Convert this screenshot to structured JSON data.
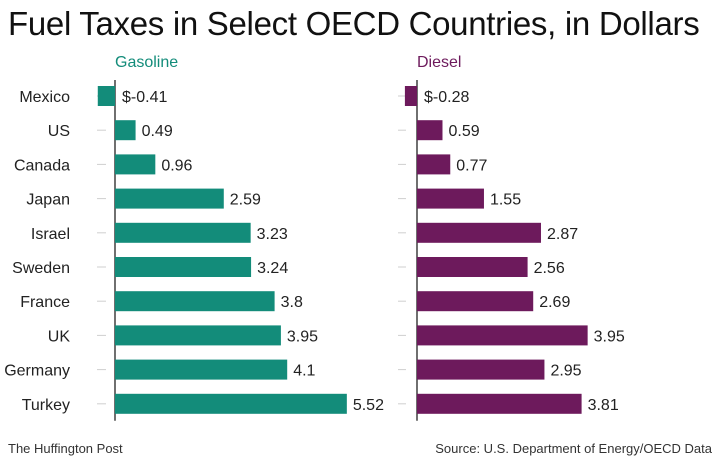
{
  "title": "Fuel Taxes in Select OECD Countries, in Dollars",
  "source_left": "The Huffington Post",
  "source_right": "Source: U.S. Department of Energy/OECD Data",
  "chart_data": {
    "type": "bar",
    "orientation": "horizontal",
    "title": "Fuel Taxes in Select OECD Countries, in Dollars",
    "categories": [
      "Mexico",
      "US",
      "Canada",
      "Japan",
      "Israel",
      "Sweden",
      "France",
      "UK",
      "Germany",
      "Turkey"
    ],
    "series": [
      {
        "name": "Gasoline",
        "color": "#138c7a",
        "values": [
          -0.41,
          0.49,
          0.96,
          2.59,
          3.23,
          3.24,
          3.8,
          3.95,
          4.1,
          5.52
        ],
        "labels": [
          "$-0.41",
          "0.49",
          "0.96",
          "2.59",
          "3.23",
          "3.24",
          "3.8",
          "3.95",
          "4.1",
          "5.52"
        ]
      },
      {
        "name": "Diesel",
        "color": "#6d1a5c",
        "values": [
          -0.28,
          0.59,
          0.77,
          1.55,
          2.87,
          2.56,
          2.69,
          3.95,
          2.95,
          3.81
        ],
        "labels": [
          "$-0.28",
          "0.59",
          "0.77",
          "1.55",
          "2.87",
          "2.56",
          "2.69",
          "3.95",
          "2.95",
          "3.81"
        ]
      }
    ],
    "legend": "panel-headers",
    "grid": false
  }
}
